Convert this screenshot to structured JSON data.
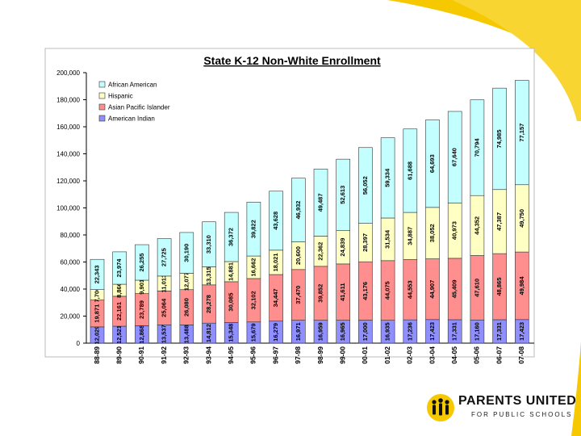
{
  "chart_data": {
    "type": "bar",
    "stacked": true,
    "title": "State K-12 Non-White Enrollment",
    "ylim": [
      0,
      200000
    ],
    "yticks": [
      "0",
      "20,000",
      "40,000",
      "60,000",
      "80,000",
      "100,000",
      "120,000",
      "140,000",
      "160,000",
      "180,000",
      "200,000"
    ],
    "categories": [
      "88-89",
      "89-90",
      "90-91",
      "91-92",
      "92-93",
      "93-94",
      "94-95",
      "95-96",
      "96-97",
      "97-98",
      "98-99",
      "99-00",
      "00-01",
      "01-02",
      "02-03",
      "03-04",
      "04-05",
      "05-06",
      "06-07",
      "07-08"
    ],
    "series": [
      {
        "name": "American Indian",
        "color": "#8f8fff",
        "values": [
          12029,
          12521,
          12868,
          13537,
          13488,
          14812,
          15348,
          15679,
          16279,
          16971,
          16959,
          16965,
          17000,
          16935,
          17236,
          17423,
          17331,
          17160,
          17331,
          17423
        ],
        "labels": [
          "12,029",
          "12,521",
          "12,868",
          "13,537",
          "13,488",
          "14,812",
          "15,348",
          "15,679",
          "16,279",
          "16,971",
          "16,959",
          "16,965",
          "17,000",
          "16,935",
          "17,236",
          "17,423",
          "17,331",
          "17,160",
          "17,331",
          "17,423"
        ]
      },
      {
        "name": "Asian Pacific Islander",
        "color": "#ff8f8f",
        "values": [
          19871,
          22161,
          23789,
          25064,
          26080,
          28278,
          30085,
          32102,
          34447,
          37470,
          39852,
          41611,
          43176,
          44075,
          44553,
          44907,
          45409,
          47610,
          48865,
          49984
        ],
        "labels": [
          "19,871",
          "22,161",
          "23,789",
          "25,064",
          "26,080",
          "28,278",
          "30,085",
          "32,102",
          "34,447",
          "37,470",
          "39,852",
          "41,611",
          "43,176",
          "44,075",
          "44,553",
          "44,907",
          "45,409",
          "47,610",
          "48,865",
          "49,984"
        ]
      },
      {
        "name": "Hispanic",
        "color": "#ffffc4",
        "values": [
          7706,
          8866,
          9901,
          11013,
          12077,
          13315,
          14881,
          16662,
          18021,
          20600,
          22362,
          24839,
          28397,
          31534,
          34887,
          38052,
          40973,
          44352,
          47387,
          49750
        ],
        "labels": [
          "7,706",
          "8,866",
          "9,901",
          "11,013",
          "12,077",
          "13,315",
          "14,881",
          "16,662",
          "18,021",
          "20,600",
          "22,362",
          "24,839",
          "28,397",
          "31,534",
          "34,887",
          "38,052",
          "40,973",
          "44,352",
          "47,387",
          "49,750"
        ]
      },
      {
        "name": "African American",
        "color": "#c4ffff",
        "values": [
          22343,
          23974,
          26255,
          27725,
          30190,
          33310,
          36372,
          39822,
          43628,
          46932,
          49487,
          52613,
          56052,
          59334,
          61688,
          64693,
          67640,
          70794,
          74985,
          77157
        ],
        "labels": [
          "22,343",
          "23,974",
          "26,255",
          "27,725",
          "30,190",
          "33,310",
          "36,372",
          "39,822",
          "43,628",
          "46,932",
          "49,487",
          "52,613",
          "56,052",
          "59,334",
          "61,688",
          "64,693",
          "67,640",
          "70,794",
          "74,985",
          "77,157"
        ]
      }
    ],
    "legend": {
      "placement": "top-left",
      "order": [
        "African American",
        "Hispanic",
        "Asian Pacific Islander",
        "American Indian"
      ]
    },
    "grid": false
  },
  "logo": {
    "name": "PARENTS UNITED",
    "tagline": "FOR PUBLIC SCHOOLS"
  },
  "colors": {
    "accent": "#f5c800"
  }
}
